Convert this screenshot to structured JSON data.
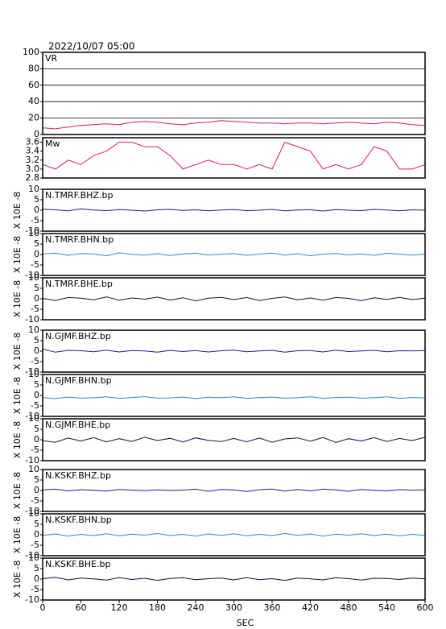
{
  "title": "2022/10/07 05:00",
  "chart_data": [
    {
      "type": "line",
      "title": "VR",
      "color": "#e0204a",
      "grid": true,
      "x": [
        0,
        20,
        40,
        60,
        80,
        100,
        120,
        140,
        160,
        180,
        200,
        220,
        240,
        260,
        280,
        300,
        320,
        340,
        360,
        380,
        400,
        420,
        440,
        460,
        480,
        500,
        520,
        540,
        560,
        580,
        600
      ],
      "values": [
        8,
        7,
        9,
        11,
        12,
        13,
        12,
        15,
        16,
        15,
        13,
        12,
        14,
        15,
        17,
        16,
        15,
        14,
        14,
        13,
        14,
        14,
        13,
        14,
        15,
        14,
        13,
        15,
        14,
        12,
        11
      ],
      "xlim": [
        0,
        600
      ],
      "ylim": [
        0,
        100
      ],
      "yticks": [
        0,
        20,
        40,
        60,
        80,
        100
      ]
    },
    {
      "type": "line",
      "title": "Mw",
      "color": "#e0204a",
      "grid": false,
      "x": [
        0,
        20,
        40,
        60,
        80,
        100,
        120,
        140,
        160,
        180,
        200,
        220,
        240,
        260,
        280,
        300,
        320,
        340,
        360,
        380,
        400,
        420,
        440,
        460,
        480,
        500,
        520,
        540,
        560,
        580,
        600
      ],
      "values": [
        3.1,
        3.0,
        3.2,
        3.1,
        3.3,
        3.4,
        3.6,
        3.6,
        3.5,
        3.5,
        3.3,
        3.0,
        3.1,
        3.2,
        3.1,
        3.1,
        3.0,
        3.1,
        3.0,
        3.6,
        3.5,
        3.4,
        3.0,
        3.1,
        3.0,
        3.1,
        3.5,
        3.4,
        3.0,
        3.0,
        3.1
      ],
      "xlim": [
        0,
        600
      ],
      "ylim": [
        2.8,
        3.7
      ],
      "yticks": [
        {
          "value": 2.8,
          "label": "2.8"
        },
        {
          "value": 3.0,
          "label": "3.0"
        },
        {
          "value": 3.2,
          "label": "3.2"
        },
        {
          "value": 3.4,
          "label": "3.4"
        },
        {
          "value": 3.6,
          "label": "3.6"
        }
      ]
    },
    {
      "type": "line",
      "title": "N.TMRF.BHZ.bp",
      "ylabel": "X 10E -8",
      "color": "#1a1aa0",
      "x": [
        0,
        20,
        40,
        60,
        80,
        100,
        120,
        140,
        160,
        180,
        200,
        220,
        240,
        260,
        280,
        300,
        320,
        340,
        360,
        380,
        400,
        420,
        440,
        460,
        480,
        500,
        520,
        540,
        560,
        580,
        600
      ],
      "values": [
        0.5,
        0.2,
        -0.3,
        0.6,
        0.1,
        -0.2,
        0.3,
        0,
        -0.4,
        0.2,
        0.4,
        -0.1,
        0.2,
        -0.3,
        0.1,
        0.3,
        -0.2,
        0,
        0.4,
        -0.3,
        0.1,
        0.2,
        -0.4,
        0.3,
        0,
        -0.2,
        0.4,
        0.1,
        -0.3,
        0.2,
        0
      ],
      "xlim": [
        0,
        600
      ],
      "ylim": [
        -10,
        10
      ],
      "yticks": [
        -10,
        -5,
        0,
        5,
        10
      ]
    },
    {
      "type": "line",
      "title": "N.TMRF.BHN.bp",
      "ylabel": "X 10E -8",
      "color": "#2a8ad8",
      "x": [
        0,
        20,
        40,
        60,
        80,
        100,
        120,
        140,
        160,
        180,
        200,
        220,
        240,
        260,
        280,
        300,
        320,
        340,
        360,
        380,
        400,
        420,
        440,
        460,
        480,
        500,
        520,
        540,
        560,
        580,
        600
      ],
      "values": [
        0.3,
        0.6,
        -0.4,
        0.5,
        0.2,
        -0.6,
        0.8,
        0.1,
        -0.3,
        0.4,
        -0.5,
        0.3,
        0.6,
        -0.2,
        0.1,
        0.5,
        -0.4,
        0.2,
        0.7,
        -0.3,
        0.4,
        -0.6,
        0.2,
        0.5,
        -0.2,
        0.3,
        -0.4,
        0.6,
        0.1,
        -0.3,
        0.2
      ],
      "xlim": [
        0,
        600
      ],
      "ylim": [
        -10,
        10
      ],
      "yticks": [
        -10,
        -5,
        0,
        5,
        10
      ]
    },
    {
      "type": "line",
      "title": "N.TMRF.BHE.bp",
      "ylabel": "X 10E -8",
      "color": "#101050",
      "x": [
        0,
        20,
        40,
        60,
        80,
        100,
        120,
        140,
        160,
        180,
        200,
        220,
        240,
        260,
        280,
        300,
        320,
        340,
        360,
        380,
        400,
        420,
        440,
        460,
        480,
        500,
        520,
        540,
        560,
        580,
        600
      ],
      "values": [
        0.2,
        -0.8,
        0.6,
        0.3,
        -0.5,
        0.9,
        -0.7,
        0.4,
        -0.2,
        0.8,
        -0.6,
        0.5,
        -1.0,
        0.3,
        0.7,
        -0.4,
        0.6,
        -0.8,
        0.2,
        0.9,
        -0.5,
        0.4,
        -0.7,
        0.6,
        0.2,
        -0.9,
        0.5,
        -0.3,
        0.7,
        -0.4,
        0.3
      ],
      "xlim": [
        0,
        600
      ],
      "ylim": [
        -10,
        10
      ],
      "yticks": [
        -10,
        -5,
        0,
        5,
        10
      ]
    },
    {
      "type": "line",
      "title": "N.GJMF.BHZ.bp",
      "ylabel": "X 10E -8",
      "color": "#1a1aa0",
      "x": [
        0,
        20,
        40,
        60,
        80,
        100,
        120,
        140,
        160,
        180,
        200,
        220,
        240,
        260,
        280,
        300,
        320,
        340,
        360,
        380,
        400,
        420,
        440,
        460,
        480,
        500,
        520,
        540,
        560,
        580,
        600
      ],
      "values": [
        1.0,
        -0.5,
        0.4,
        0.2,
        -0.3,
        0.5,
        -0.4,
        0.3,
        0.1,
        -0.5,
        0.4,
        -0.2,
        0.3,
        -0.4,
        0.2,
        0.5,
        -0.3,
        0.1,
        0.4,
        -0.5,
        0.2,
        0.3,
        -0.4,
        0.5,
        -0.2,
        0.1,
        0.4,
        -0.3,
        0.2,
        0.1,
        0.3
      ],
      "xlim": [
        0,
        600
      ],
      "ylim": [
        -10,
        10
      ],
      "yticks": [
        -10,
        -5,
        0,
        5,
        10
      ]
    },
    {
      "type": "line",
      "title": "N.GJMF.BHN.bp",
      "ylabel": "X 10E -8",
      "color": "#2a8ad8",
      "x": [
        0,
        20,
        40,
        60,
        80,
        100,
        120,
        140,
        160,
        180,
        200,
        220,
        240,
        260,
        280,
        300,
        320,
        340,
        360,
        380,
        400,
        420,
        440,
        460,
        480,
        500,
        520,
        540,
        560,
        580,
        600
      ],
      "values": [
        -1.0,
        -1.5,
        -0.8,
        -1.3,
        -1.1,
        -0.7,
        -1.4,
        -1.0,
        -0.6,
        -1.3,
        -1.2,
        -0.8,
        -1.5,
        -0.9,
        -1.1,
        -0.7,
        -1.4,
        -1.0,
        -0.8,
        -1.3,
        -1.1,
        -0.6,
        -1.4,
        -1.0,
        -0.8,
        -1.3,
        -1.1,
        -0.7,
        -1.4,
        -1.0,
        -1.2
      ],
      "xlim": [
        0,
        600
      ],
      "ylim": [
        -10,
        10
      ],
      "yticks": [
        -10,
        -5,
        0,
        5,
        10
      ]
    },
    {
      "type": "line",
      "title": "N.GJMF.BHE.bp",
      "ylabel": "X 10E -8",
      "color": "#101050",
      "x": [
        0,
        20,
        40,
        60,
        80,
        100,
        120,
        140,
        160,
        180,
        200,
        220,
        240,
        260,
        280,
        300,
        320,
        340,
        360,
        380,
        400,
        420,
        440,
        460,
        480,
        500,
        520,
        540,
        560,
        580,
        600
      ],
      "values": [
        -0.5,
        -1.2,
        0.8,
        -0.6,
        1.0,
        -1.0,
        0.5,
        -0.8,
        1.2,
        -0.4,
        0.7,
        -1.1,
        0.9,
        -0.3,
        -0.9,
        0.6,
        -1.0,
        0.8,
        -1.2,
        0.4,
        0.9,
        -0.7,
        1.1,
        -1.3,
        0.5,
        -0.6,
        1.0,
        -0.8,
        0.6,
        -0.4,
        1.2
      ],
      "xlim": [
        0,
        600
      ],
      "ylim": [
        -10,
        10
      ],
      "yticks": [
        -10,
        -5,
        0,
        5,
        10
      ]
    },
    {
      "type": "line",
      "title": "N.KSKF.BHZ.bp",
      "ylabel": "X 10E -8",
      "color": "#1a1aa0",
      "x": [
        0,
        20,
        40,
        60,
        80,
        100,
        120,
        140,
        160,
        180,
        200,
        220,
        240,
        260,
        280,
        300,
        320,
        340,
        360,
        380,
        400,
        420,
        440,
        460,
        480,
        500,
        520,
        540,
        560,
        580,
        600
      ],
      "values": [
        0.3,
        0.6,
        -0.2,
        0.4,
        0.1,
        -0.3,
        0.5,
        0.2,
        -0.1,
        0.3,
        0,
        0.2,
        0.6,
        -0.4,
        0.5,
        0.3,
        -0.5,
        0.4,
        0.7,
        -0.3,
        0.5,
        -0.2,
        0.6,
        0.3,
        -0.4,
        0.5,
        0.1,
        -0.2,
        0.4,
        0.2,
        0.3
      ],
      "xlim": [
        0,
        600
      ],
      "ylim": [
        -10,
        10
      ],
      "yticks": [
        -10,
        -5,
        0,
        5,
        10
      ]
    },
    {
      "type": "line",
      "title": "N.KSKF.BHN.bp",
      "ylabel": "X 10E -8",
      "color": "#2a8ad8",
      "x": [
        0,
        20,
        40,
        60,
        80,
        100,
        120,
        140,
        160,
        180,
        200,
        220,
        240,
        260,
        280,
        300,
        320,
        340,
        360,
        380,
        400,
        420,
        440,
        460,
        480,
        500,
        520,
        540,
        560,
        580,
        600
      ],
      "values": [
        -0.3,
        0.4,
        -0.6,
        0.2,
        -0.4,
        0.5,
        -0.5,
        0.3,
        -0.2,
        0.6,
        -0.4,
        0.2,
        -0.6,
        0.4,
        -0.3,
        0.5,
        -0.5,
        0.2,
        -0.4,
        0.6,
        -0.3,
        0.4,
        -0.6,
        0.3,
        -0.2,
        0.5,
        -0.4,
        0.3,
        -0.5,
        0.2,
        -0.3
      ],
      "xlim": [
        0,
        600
      ],
      "ylim": [
        -10,
        10
      ],
      "yticks": [
        -10,
        -5,
        0,
        5,
        10
      ]
    },
    {
      "type": "line",
      "title": "N.KSKF.BHE.bp",
      "ylabel": "X 10E -8",
      "color": "#101050",
      "x": [
        0,
        20,
        40,
        60,
        80,
        100,
        120,
        140,
        160,
        180,
        200,
        220,
        240,
        260,
        280,
        300,
        320,
        340,
        360,
        380,
        400,
        420,
        440,
        460,
        480,
        500,
        520,
        540,
        560,
        580,
        600
      ],
      "values": [
        0.2,
        0.8,
        -0.4,
        0.5,
        0.1,
        -0.5,
        0.7,
        -0.2,
        0.4,
        -0.6,
        0.3,
        0.6,
        -0.3,
        0.2,
        0.5,
        -0.4,
        0.7,
        -0.3,
        0.2,
        -0.6,
        0.5,
        0.1,
        -0.4,
        0.6,
        0.2,
        -0.5,
        0.4,
        0.3,
        -0.2,
        0.5,
        0.1
      ],
      "xlim": [
        0,
        600
      ],
      "ylim": [
        -10,
        10
      ],
      "yticks": [
        -10,
        -5,
        0,
        5,
        10
      ],
      "xticks": [
        0,
        60,
        120,
        180,
        240,
        300,
        360,
        420,
        480,
        540,
        600
      ],
      "xlabel": "SEC"
    }
  ]
}
